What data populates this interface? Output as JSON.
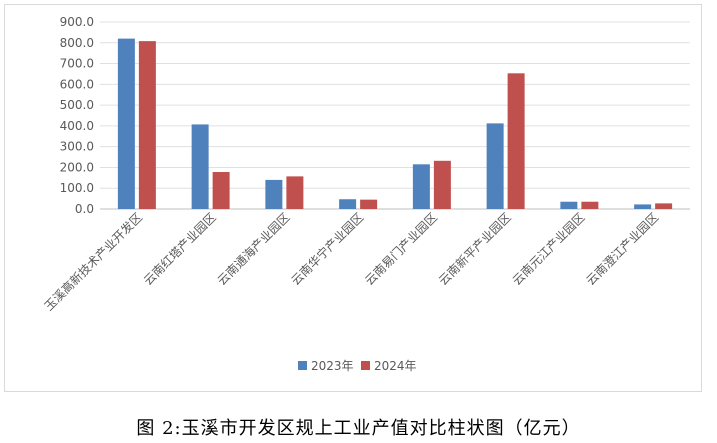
{
  "caption": "图 2:玉溪市开发区规上工业产值对比柱状图（亿元）",
  "chart_data": {
    "type": "bar",
    "title": "",
    "xlabel": "",
    "ylabel": "",
    "ylim": [
      0,
      900
    ],
    "ytick_step": 100,
    "ytick_labels": [
      "0.0",
      "100.0",
      "200.0",
      "300.0",
      "400.0",
      "500.0",
      "600.0",
      "700.0",
      "800.0",
      "900.0"
    ],
    "grid": true,
    "legend_position": "bottom",
    "categories": [
      "玉溪高新技术产业开发区",
      "云南红塔产业园区",
      "云南通海产业园区",
      "云南华宁产业园区",
      "云南易门产业园区",
      "云南新平产业园区",
      "云南元江产业园区",
      "云南澄江产业园区"
    ],
    "series": [
      {
        "name": "2023年",
        "color": "#4f81bd",
        "values": [
          820,
          407,
          140,
          47,
          215,
          412,
          35,
          22
        ]
      },
      {
        "name": "2024年",
        "color": "#c0504d",
        "values": [
          808,
          178,
          157,
          45,
          232,
          653,
          35,
          27
        ]
      }
    ]
  }
}
